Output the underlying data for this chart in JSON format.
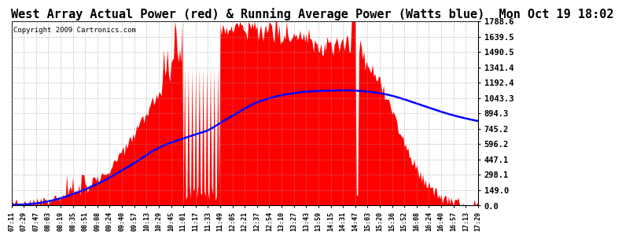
{
  "title": "West Array Actual Power (red) & Running Average Power (Watts blue)  Mon Oct 19 18:02",
  "copyright": "Copyright 2009 Cartronics.com",
  "ylabel_right_values": [
    1788.6,
    1639.5,
    1490.5,
    1341.4,
    1192.4,
    1043.3,
    894.3,
    745.2,
    596.2,
    447.1,
    298.1,
    149.0,
    0.0
  ],
  "ymax": 1788.6,
  "ymin": 0.0,
  "background_color": "#ffffff",
  "plot_bg_color": "#ffffff",
  "grid_color": "#999999",
  "fill_color": "#ff0000",
  "line_color": "#0000ff",
  "title_fontsize": 11,
  "x_labels": [
    "07:11",
    "07:29",
    "07:47",
    "08:03",
    "08:19",
    "08:35",
    "08:51",
    "09:08",
    "09:24",
    "09:40",
    "09:57",
    "10:13",
    "10:29",
    "10:45",
    "11:01",
    "11:17",
    "11:33",
    "11:49",
    "12:05",
    "12:21",
    "12:37",
    "12:54",
    "13:10",
    "13:27",
    "13:43",
    "13:59",
    "14:15",
    "14:31",
    "14:47",
    "15:03",
    "15:20",
    "15:36",
    "15:52",
    "16:08",
    "16:24",
    "16:40",
    "16:57",
    "17:13",
    "17:29"
  ]
}
